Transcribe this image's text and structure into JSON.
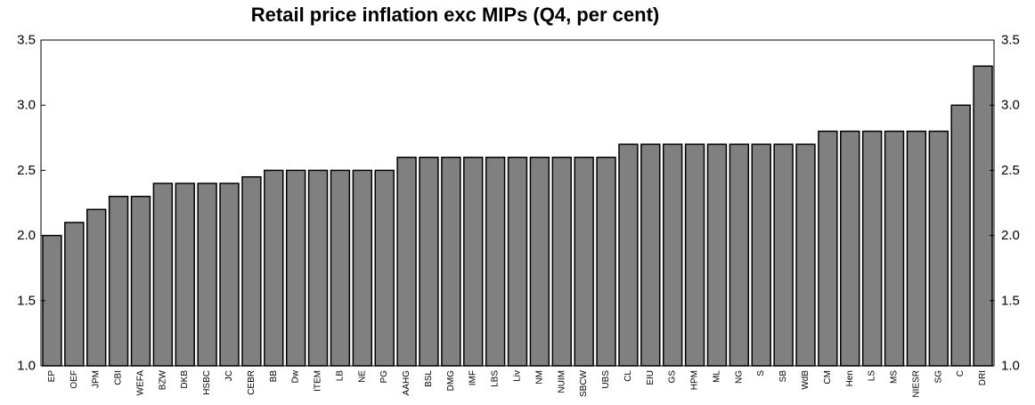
{
  "chart_data": {
    "type": "bar",
    "title": "Retail price inflation exc MIPs (Q4, per cent)",
    "xlabel": "",
    "ylabel": "",
    "ylim": [
      1.0,
      3.5
    ],
    "yticks": [
      "1.0",
      "1.5",
      "2.0",
      "2.5",
      "3.0",
      "3.5"
    ],
    "ytick_values": [
      1.0,
      1.5,
      2.0,
      2.5,
      3.0,
      3.5
    ],
    "secondary_y_axis": true,
    "grid": false,
    "legend": "none",
    "bar_color": "#808080",
    "bar_edge_color": "#000000",
    "categories": [
      "EP",
      "OEF",
      "JPM",
      "CBI",
      "WEFA",
      "BZW",
      "DKB",
      "HSBC",
      "JC",
      "CEBR",
      "BB",
      "Dw",
      "ITEM",
      "LB",
      "NE",
      "PG",
      "AAHG",
      "BSL",
      "DMG",
      "IMF",
      "LBS",
      "Liv",
      "NM",
      "NUIM",
      "SBCW",
      "UBS",
      "CL",
      "EIU",
      "GS",
      "HPM",
      "ML",
      "NG",
      "S",
      "SB",
      "WdB",
      "CM",
      "Hen",
      "LS",
      "MS",
      "NIESR",
      "SG",
      "C",
      "DRI"
    ],
    "values": [
      2.0,
      2.1,
      2.2,
      2.3,
      2.3,
      2.4,
      2.4,
      2.4,
      2.4,
      2.45,
      2.5,
      2.5,
      2.5,
      2.5,
      2.5,
      2.5,
      2.6,
      2.6,
      2.6,
      2.6,
      2.6,
      2.6,
      2.6,
      2.6,
      2.6,
      2.6,
      2.7,
      2.7,
      2.7,
      2.7,
      2.7,
      2.7,
      2.7,
      2.7,
      2.7,
      2.8,
      2.8,
      2.8,
      2.8,
      2.8,
      2.8,
      3.0,
      3.3
    ]
  }
}
